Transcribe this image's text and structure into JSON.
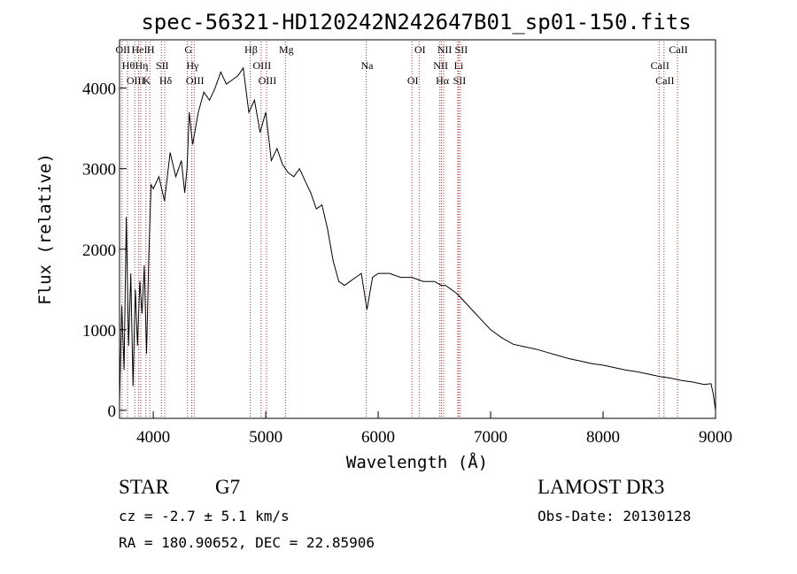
{
  "chart_data": {
    "type": "line",
    "title": "spec-56321-HD120242N242647B01_sp01-150.fits",
    "xlabel": "Wavelength (Å)",
    "ylabel": "Flux (relative)",
    "xlim": [
      3700,
      9000
    ],
    "ylim": [
      -100,
      4600
    ],
    "x_ticks": [
      4000,
      5000,
      6000,
      7000,
      8000,
      9000
    ],
    "y_ticks": [
      0,
      1000,
      2000,
      3000,
      4000
    ],
    "grid": false,
    "series": [
      {
        "x": [
          3700,
          3720,
          3740,
          3760,
          3780,
          3800,
          3820,
          3840,
          3860,
          3880,
          3900,
          3920,
          3940,
          3960,
          3980,
          4000,
          4050,
          4100,
          4150,
          4200,
          4250,
          4280,
          4300,
          4320,
          4350,
          4400,
          4450,
          4500,
          4550,
          4600,
          4650,
          4700,
          4750,
          4800,
          4850,
          4900,
          4950,
          5000,
          5050,
          5100,
          5150,
          5200,
          5250,
          5300,
          5350,
          5400,
          5450,
          5500,
          5550,
          5600,
          5650,
          5700,
          5750,
          5800,
          5850,
          5900,
          5950,
          6000,
          6100,
          6200,
          6300,
          6400,
          6500,
          6563,
          6600,
          6700,
          6800,
          6900,
          7000,
          7100,
          7200,
          7300,
          7400,
          7500,
          7600,
          7700,
          7800,
          7900,
          8000,
          8100,
          8200,
          8300,
          8400,
          8500,
          8600,
          8700,
          8800,
          8900,
          8960,
          8980,
          9000
        ],
        "y": [
          100,
          1300,
          500,
          2400,
          800,
          1700,
          300,
          1500,
          800,
          1600,
          1200,
          1800,
          700,
          1900,
          2800,
          2750,
          2900,
          2600,
          3200,
          2900,
          3100,
          2700,
          3000,
          3700,
          3300,
          3700,
          3950,
          3850,
          4000,
          4200,
          4050,
          4100,
          4150,
          4250,
          3700,
          3850,
          3450,
          3700,
          3100,
          3250,
          3050,
          2950,
          2900,
          3000,
          2850,
          2700,
          2500,
          2550,
          2250,
          1850,
          1600,
          1550,
          1600,
          1650,
          1700,
          1250,
          1650,
          1700,
          1700,
          1650,
          1650,
          1600,
          1600,
          1550,
          1550,
          1450,
          1300,
          1150,
          1000,
          900,
          820,
          790,
          760,
          720,
          680,
          640,
          610,
          580,
          560,
          530,
          500,
          480,
          450,
          420,
          400,
          370,
          350,
          320,
          330,
          200,
          0
        ]
      }
    ],
    "line_annotations": [
      {
        "wavelength": 3722,
        "label": "OII"
      },
      {
        "wavelength": 3771,
        "label": "Hθ"
      },
      {
        "wavelength": 3835,
        "label": "OIII"
      },
      {
        "wavelength": 3869,
        "label": "HeI"
      },
      {
        "wavelength": 3889,
        "label": "Hη"
      },
      {
        "wavelength": 3934,
        "label": "K"
      },
      {
        "wavelength": 3969,
        "label": "H"
      },
      {
        "wavelength": 4072,
        "label": "SII"
      },
      {
        "wavelength": 4102,
        "label": "Hδ"
      },
      {
        "wavelength": 4304,
        "label": "G"
      },
      {
        "wavelength": 4341,
        "label": "Hγ"
      },
      {
        "wavelength": 4363,
        "label": "OIII"
      },
      {
        "wavelength": 4861,
        "label": "Hβ"
      },
      {
        "wavelength": 4959,
        "label": "OIII"
      },
      {
        "wavelength": 5007,
        "label": "OIII"
      },
      {
        "wavelength": 5175,
        "label": "Mg"
      },
      {
        "wavelength": 5893,
        "label": "Na"
      },
      {
        "wavelength": 6300,
        "label": "OI"
      },
      {
        "wavelength": 6364,
        "label": "OI"
      },
      {
        "wavelength": 6548,
        "label": "NII"
      },
      {
        "wavelength": 6563,
        "label": "Hα"
      },
      {
        "wavelength": 6583,
        "label": "NII"
      },
      {
        "wavelength": 6708,
        "label": "Li"
      },
      {
        "wavelength": 6716,
        "label": "SII"
      },
      {
        "wavelength": 6731,
        "label": "SII"
      },
      {
        "wavelength": 8498,
        "label": "CaII"
      },
      {
        "wavelength": 8542,
        "label": "CaII"
      },
      {
        "wavelength": 8662,
        "label": "CaII"
      }
    ]
  },
  "info": {
    "object_type": "STAR",
    "subclass": "G7",
    "survey": "LAMOST DR3",
    "redshift": "cz = -2.7 ± 5.1 km/s",
    "obs_date": "Obs-Date: 20130128",
    "coords": "RA = 180.90652, DEC =  22.85906"
  },
  "colors": {
    "line": "#000000",
    "annotation": "#b03030",
    "background": "#ffffff"
  }
}
